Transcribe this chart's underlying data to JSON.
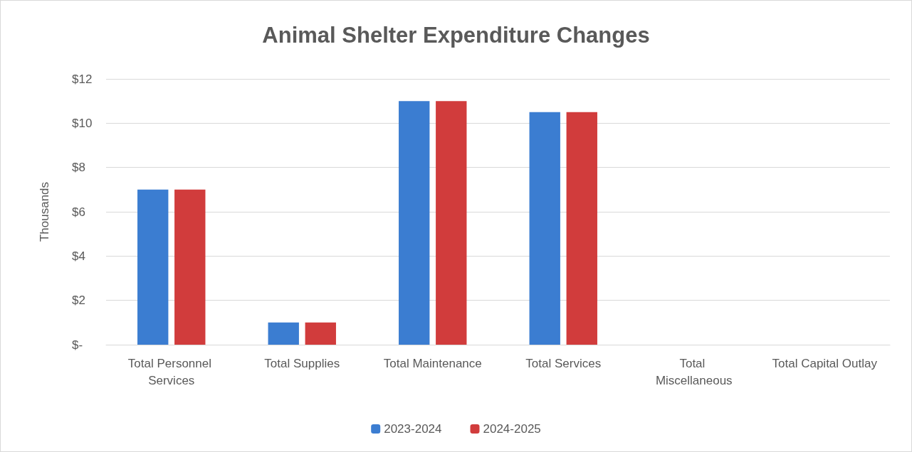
{
  "chart_data": {
    "type": "bar",
    "title": "Animal Shelter Expenditure Changes",
    "ylabel": "Thousands",
    "categories": [
      "Total Personnel Services",
      "Total Supplies",
      "Total Maintenance",
      "Total Services",
      "Total Miscellaneous",
      "Total Capital Outlay"
    ],
    "series": [
      {
        "name": "2023-2024",
        "color": "#3b7dd1",
        "values": [
          7,
          1,
          11,
          10.5,
          0,
          0
        ]
      },
      {
        "name": "2024-2025",
        "color": "#d13c3c",
        "values": [
          7,
          1,
          11,
          10.5,
          0,
          0
        ]
      }
    ],
    "ylim": [
      0,
      12
    ],
    "yticks": [
      {
        "value": 0,
        "label": "$-"
      },
      {
        "value": 2,
        "label": "$2"
      },
      {
        "value": 4,
        "label": "$4"
      },
      {
        "value": 6,
        "label": "$6"
      },
      {
        "value": 8,
        "label": "$8"
      },
      {
        "value": 10,
        "label": "$10"
      },
      {
        "value": 12,
        "label": "$12"
      }
    ],
    "grid": "y",
    "legend": "bottom"
  }
}
